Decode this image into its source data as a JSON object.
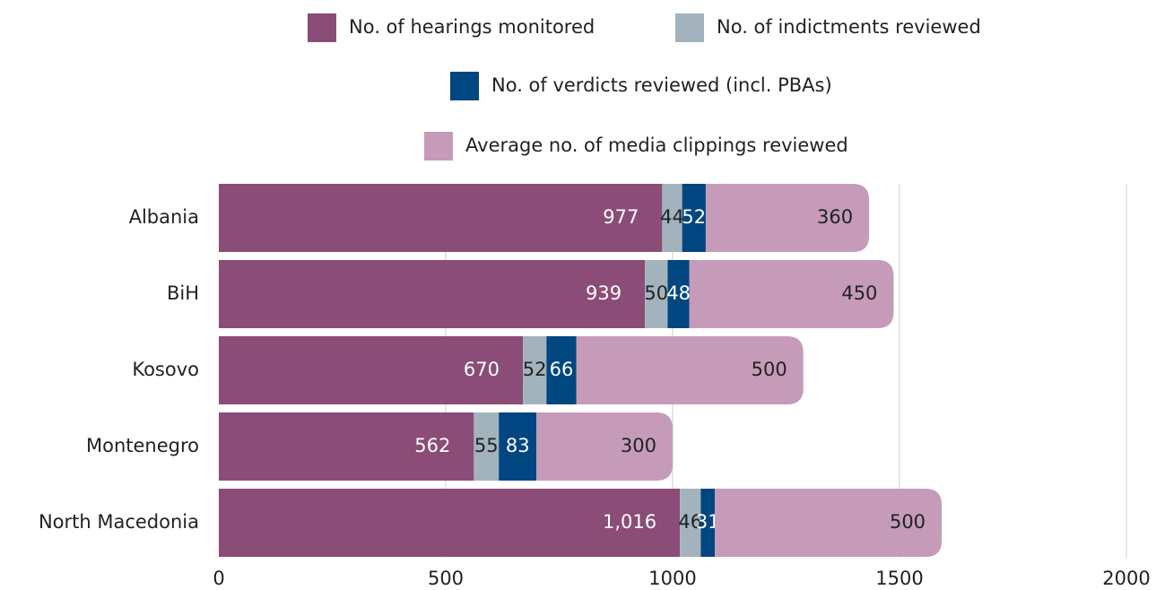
{
  "chart_data": {
    "type": "stacked-barh",
    "categories": [
      "Albania",
      "BiH",
      "Kosovo",
      "Montenegro",
      "North Macedonia"
    ],
    "series": [
      {
        "name": "No. of hearings monitored",
        "color": "#8b4c77",
        "values": [
          977,
          939,
          670,
          562,
          1016
        ],
        "value_labels": [
          "977",
          "939",
          "670",
          "562",
          "1,016"
        ]
      },
      {
        "name": "No. of indictments reviewed",
        "color": "#a3b3bd",
        "values": [
          44,
          50,
          52,
          55,
          46
        ]
      },
      {
        "name": "No. of verdicts reviewed (incl. PBAs)",
        "color": "#004680",
        "values": [
          52,
          48,
          66,
          83,
          31
        ]
      },
      {
        "name": "Average no. of media clippings reviewed",
        "color": "#c59bb9",
        "values": [
          360,
          450,
          500,
          300,
          500
        ]
      }
    ],
    "xlim": [
      0,
      2000
    ],
    "xticks": [
      0,
      500,
      1000,
      1500,
      2000
    ],
    "grid": true
  }
}
